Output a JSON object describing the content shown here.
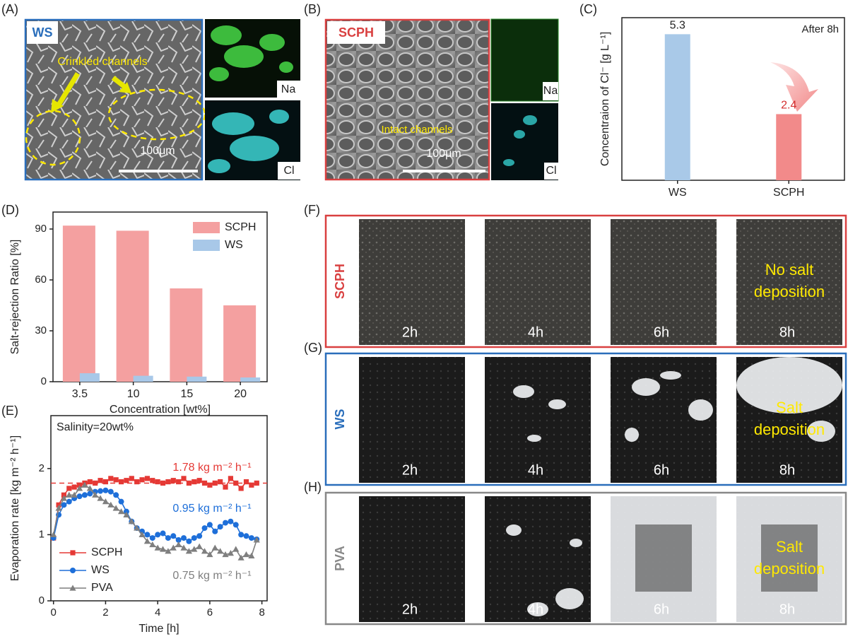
{
  "panels": {
    "A": {
      "label": "(A)",
      "tag": "WS",
      "annotation": "Crinkled channels",
      "scale_bar": "100μm",
      "maps": [
        "Na",
        "Cl"
      ]
    },
    "B": {
      "label": "(B)",
      "tag": "SCPH",
      "annotation": "Intact channels",
      "scale_bar": "100μm",
      "maps": [
        "Na",
        "Cl"
      ]
    },
    "F": {
      "label": "(F)",
      "sample": "SCPH",
      "times": [
        "2h",
        "4h",
        "6h",
        "8h"
      ],
      "note": [
        "No salt",
        "deposition"
      ]
    },
    "G": {
      "label": "(G)",
      "sample": "WS",
      "times": [
        "2h",
        "4h",
        "6h",
        "8h"
      ],
      "note": [
        "Salt",
        "deposition"
      ]
    },
    "H": {
      "label": "(H)",
      "sample": "PVA",
      "times": [
        "2h",
        "4h",
        "6h",
        "8h"
      ],
      "note": [
        "Salt",
        "deposition"
      ]
    }
  },
  "chart_data": [
    {
      "type": "bar",
      "panel_label": "(C)",
      "ylabel": "Concentraion of Cl⁻ [g L⁻¹]",
      "annotation": "After 8h",
      "categories": [
        "WS",
        "SCPH"
      ],
      "values": [
        5.3,
        2.4
      ],
      "colors": [
        "#a9c9e8",
        "#f28a8a"
      ],
      "ylim": [
        0,
        5.9
      ]
    },
    {
      "type": "bar",
      "panel_label": "(D)",
      "xlabel": "Concentration [wt%]",
      "ylabel": "Salt-rejection Ratio [%]",
      "categories": [
        "3.5",
        "10",
        "15",
        "20"
      ],
      "series": [
        {
          "name": "SCPH",
          "color": "#f4a0a0",
          "values": [
            92,
            89,
            55,
            45
          ]
        },
        {
          "name": "WS",
          "color": "#a8c8e8",
          "values": [
            5,
            3.5,
            3,
            2.5
          ]
        }
      ],
      "ylim": [
        0,
        100
      ],
      "yticks": [
        0,
        30,
        60,
        90
      ],
      "legend": "upper right"
    },
    {
      "type": "line",
      "panel_label": "(E)",
      "xlabel": "Time [h]",
      "ylabel": "Evaporation rate [kg m⁻² h⁻¹]",
      "x": [
        0,
        0.2,
        0.4,
        0.6,
        0.8,
        1,
        1.2,
        1.4,
        1.6,
        1.8,
        2,
        2.2,
        2.4,
        2.6,
        2.8,
        3,
        3.2,
        3.4,
        3.6,
        3.8,
        4,
        4.2,
        4.4,
        4.6,
        4.8,
        5,
        5.2,
        5.4,
        5.6,
        5.8,
        6,
        6.2,
        6.4,
        6.6,
        6.8,
        7,
        7.2,
        7.4,
        7.6,
        7.8
      ],
      "series": [
        {
          "name": "SCPH",
          "color": "#e53935",
          "marker": "square",
          "values": [
            0.95,
            1.45,
            1.6,
            1.7,
            1.72,
            1.75,
            1.78,
            1.8,
            1.78,
            1.82,
            1.8,
            1.85,
            1.83,
            1.8,
            1.82,
            1.85,
            1.8,
            1.83,
            1.85,
            1.82,
            1.8,
            1.78,
            1.8,
            1.82,
            1.8,
            1.85,
            1.78,
            1.8,
            1.82,
            1.78,
            1.75,
            1.78,
            1.8,
            1.72,
            1.85,
            1.78,
            1.7,
            1.8,
            1.75,
            1.78
          ]
        },
        {
          "name": "WS",
          "color": "#1e6fd9",
          "marker": "circle",
          "values": [
            0.95,
            1.3,
            1.45,
            1.5,
            1.55,
            1.58,
            1.6,
            1.62,
            1.65,
            1.66,
            1.67,
            1.65,
            1.6,
            1.5,
            1.35,
            1.2,
            1.1,
            1.05,
            1.0,
            0.95,
            1.0,
            1.02,
            0.95,
            0.98,
            0.92,
            0.95,
            0.9,
            0.95,
            0.98,
            1.1,
            1.15,
            1.05,
            1.12,
            1.18,
            1.2,
            1.15,
            1.0,
            0.98,
            0.95,
            0.93
          ]
        },
        {
          "name": "PVA",
          "color": "#7f7f7f",
          "marker": "triangle",
          "values": [
            1.0,
            1.4,
            1.55,
            1.6,
            1.6,
            1.7,
            1.75,
            1.7,
            1.6,
            1.55,
            1.5,
            1.45,
            1.4,
            1.35,
            1.3,
            1.2,
            1.1,
            1.0,
            0.9,
            0.85,
            0.8,
            0.78,
            0.75,
            0.8,
            0.85,
            0.8,
            0.75,
            0.78,
            0.82,
            0.75,
            0.7,
            0.8,
            0.75,
            0.7,
            0.72,
            0.78,
            0.65,
            0.7,
            0.68,
            0.92
          ]
        }
      ],
      "reference_line": {
        "value": 1.78,
        "color": "#e53935"
      },
      "annotations": [
        "Salinity=20wt%",
        "1.78 kg m⁻² h⁻¹",
        "0.95 kg m⁻² h⁻¹",
        "0.75 kg m⁻² h⁻¹"
      ],
      "xlim": [
        -0.1,
        8.2
      ],
      "ylim": [
        0,
        2.8
      ],
      "xticks": [
        0,
        2,
        4,
        6,
        8
      ],
      "yticks": [
        0,
        1,
        2
      ],
      "legend": "lower left"
    }
  ]
}
